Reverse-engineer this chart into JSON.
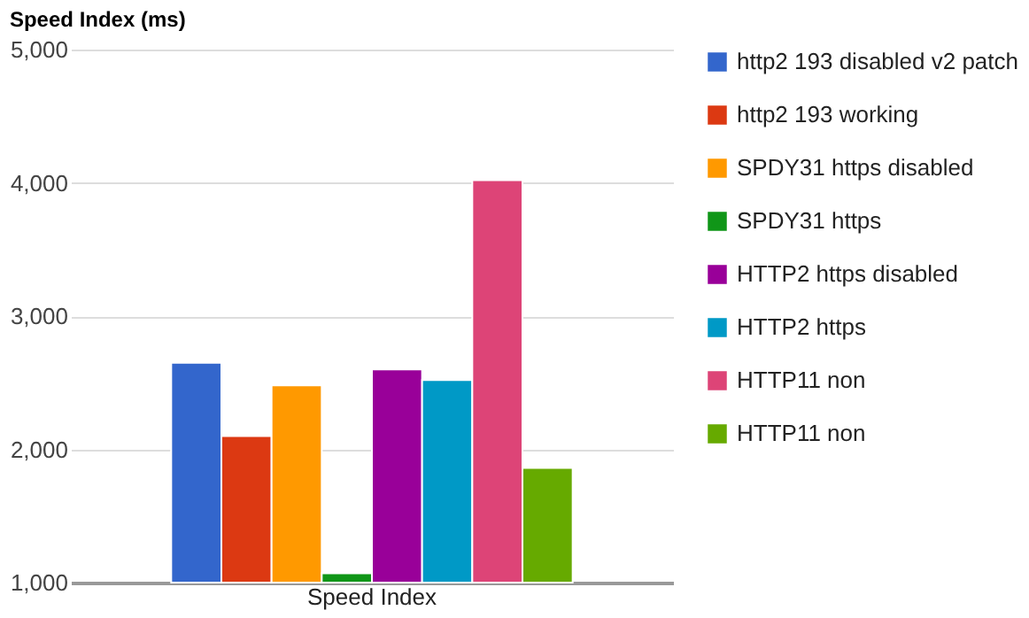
{
  "chart_data": {
    "type": "bar",
    "title": "Speed Index (ms)",
    "categories": [
      "Speed Index"
    ],
    "series": [
      {
        "name": "http2 193 disabled v2 patch",
        "color": "#3366cc",
        "values": [
          2650
        ]
      },
      {
        "name": "http2 193 working",
        "color": "#dc3912",
        "values": [
          2100
        ]
      },
      {
        "name": "SPDY31 https disabled",
        "color": "#ff9900",
        "values": [
          2480
        ]
      },
      {
        "name": "SPDY31 https",
        "color": "#109618",
        "values": [
          1070
        ]
      },
      {
        "name": "HTTP2 https disabled",
        "color": "#990099",
        "values": [
          2600
        ]
      },
      {
        "name": "HTTP2 https",
        "color": "#0099c6",
        "values": [
          2520
        ]
      },
      {
        "name": "HTTP11 non",
        "color": "#dd4477",
        "values": [
          4020
        ]
      },
      {
        "name": "HTTP11 non",
        "color": "#66aa00",
        "values": [
          1860
        ]
      }
    ],
    "ylim": [
      1000,
      5000
    ],
    "yticks": [
      {
        "value": 1000,
        "label": "1,000"
      },
      {
        "value": 2000,
        "label": "2,000"
      },
      {
        "value": 3000,
        "label": "3,000"
      },
      {
        "value": 4000,
        "label": "4,000"
      },
      {
        "value": 5000,
        "label": "5,000"
      }
    ],
    "grid": "y",
    "legend": "right"
  }
}
